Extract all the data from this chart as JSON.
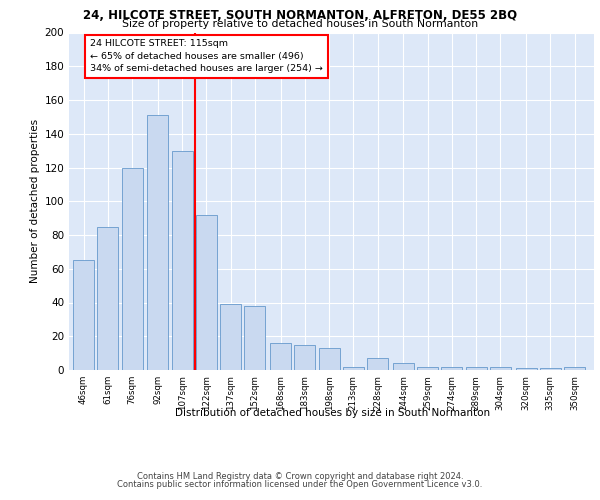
{
  "title1": "24, HILCOTE STREET, SOUTH NORMANTON, ALFRETON, DE55 2BQ",
  "title2": "Size of property relative to detached houses in South Normanton",
  "xlabel": "Distribution of detached houses by size in South Normanton",
  "ylabel": "Number of detached properties",
  "bar_color": "#c9d9f0",
  "bar_edge_color": "#6699cc",
  "bins": [
    46,
    61,
    76,
    92,
    107,
    122,
    137,
    152,
    168,
    183,
    198,
    213,
    228,
    244,
    259,
    274,
    289,
    304,
    320,
    335,
    350
  ],
  "values": [
    65,
    85,
    120,
    151,
    130,
    92,
    39,
    38,
    16,
    15,
    13,
    2,
    7,
    4,
    2,
    2,
    2,
    2,
    1,
    1,
    2
  ],
  "tick_labels": [
    "46sqm",
    "61sqm",
    "76sqm",
    "92sqm",
    "107sqm",
    "122sqm",
    "137sqm",
    "152sqm",
    "168sqm",
    "183sqm",
    "198sqm",
    "213sqm",
    "228sqm",
    "244sqm",
    "259sqm",
    "274sqm",
    "289sqm",
    "304sqm",
    "320sqm",
    "335sqm",
    "350sqm"
  ],
  "red_line_x": 115,
  "annotation_title": "24 HILCOTE STREET: 115sqm",
  "annotation_line1": "← 65% of detached houses are smaller (496)",
  "annotation_line2": "34% of semi-detached houses are larger (254) →",
  "ylim": [
    0,
    200
  ],
  "yticks": [
    0,
    20,
    40,
    60,
    80,
    100,
    120,
    140,
    160,
    180,
    200
  ],
  "footer1": "Contains HM Land Registry data © Crown copyright and database right 2024.",
  "footer2": "Contains public sector information licensed under the Open Government Licence v3.0.",
  "background_color": "#dde8f8"
}
